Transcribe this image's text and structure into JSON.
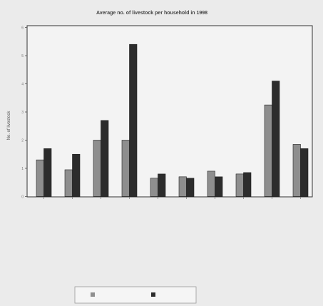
{
  "chart_data": {
    "type": "bar",
    "title": "Average no. of livestock per household in 1998",
    "xlabel": "",
    "ylabel": "No. of livestock",
    "ylim": [
      0,
      6
    ],
    "yticks": [
      0,
      1,
      2,
      3,
      4,
      5,
      6
    ],
    "grid": false,
    "legend_position": "bottom",
    "categories": [
      "",
      "",
      "",
      "",
      "",
      "",
      "",
      "",
      "",
      ""
    ],
    "series": [
      {
        "name": "",
        "color": "#8e8e8e",
        "values": [
          1.3,
          0.95,
          2.0,
          2.0,
          0.65,
          0.7,
          0.9,
          0.8,
          3.25,
          1.85
        ]
      },
      {
        "name": "",
        "color": "#2c2c2c",
        "values": [
          1.7,
          1.5,
          2.7,
          5.4,
          0.8,
          0.65,
          0.7,
          0.85,
          4.1,
          1.7
        ]
      }
    ]
  }
}
